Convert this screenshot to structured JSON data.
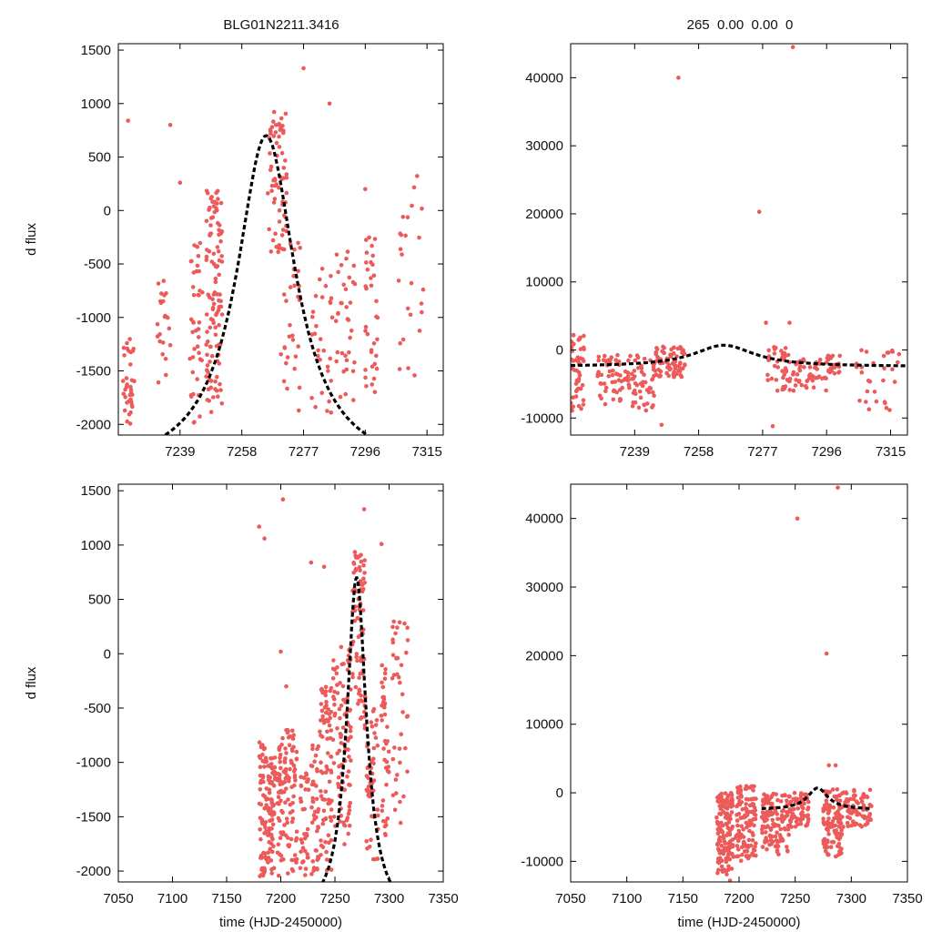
{
  "figure": {
    "title_left": "BLG01N2211.3416",
    "title_right": "265  0.00  0.00  0",
    "colors": {
      "points": "#ec5a5a",
      "model": "#000000"
    }
  },
  "chart_data": [
    {
      "type": "scatter",
      "id": "top-left",
      "ylabel": "d flux",
      "xlabel": "",
      "xlim": [
        7220,
        7320
      ],
      "ylim": [
        -2100,
        1560
      ],
      "xticks": [
        7239,
        7258,
        7277,
        7296,
        7315
      ],
      "yticks": [
        1500,
        1000,
        500,
        0,
        -500,
        -1000,
        -1500,
        -2000
      ],
      "series": [
        {
          "name": "observations",
          "clusters": [
            [
              7221,
              7225,
              -2000,
              -1200,
              35
            ],
            [
              7232,
              7236,
              -2000,
              -600,
              22
            ],
            [
              7242,
              7246,
              -2000,
              -300,
              40
            ],
            [
              7247,
              7252,
              -1900,
              200,
              110
            ],
            [
              7266,
              7272,
              -400,
              950,
              70
            ],
            [
              7270,
              7276,
              -1900,
              -300,
              30
            ],
            [
              7279,
              7286,
              -2000,
              -500,
              30
            ],
            [
              7287,
              7293,
              -1800,
              -300,
              35
            ],
            [
              7296,
              7300,
              -1700,
              -100,
              35
            ],
            [
              7305,
              7314,
              -1600,
              400,
              25
            ]
          ],
          "outliers": [
            [
              7223,
              840
            ],
            [
              7236,
              800
            ],
            [
              7239,
              260
            ],
            [
              7277,
              1330
            ],
            [
              7285,
              1000
            ],
            [
              7296,
              200
            ]
          ]
        },
        {
          "name": "model",
          "t0": 7265.5,
          "peak": 700,
          "base": -2450,
          "width": 11
        }
      ]
    },
    {
      "type": "scatter",
      "id": "top-right",
      "ylabel": "",
      "xlabel": "",
      "xlim": [
        7220,
        7320
      ],
      "ylim": [
        -12500,
        45000
      ],
      "xticks": [
        7239,
        7258,
        7277,
        7296,
        7315
      ],
      "yticks": [
        40000,
        30000,
        20000,
        10000,
        0,
        -10000
      ],
      "series": [
        {
          "name": "observations",
          "clusters": [
            [
              7220,
              7224,
              -9500,
              2500,
              50
            ],
            [
              7228,
              7238,
              -8000,
              -500,
              60
            ],
            [
              7238,
              7245,
              -9000,
              -500,
              50
            ],
            [
              7245,
              7254,
              -4000,
              500,
              80
            ],
            [
              7278,
              7285,
              -6000,
              1000,
              40
            ],
            [
              7285,
              7296,
              -6000,
              -1000,
              50
            ],
            [
              7296,
              7300,
              -3500,
              -500,
              25
            ],
            [
              7304,
              7318,
              -9000,
              0,
              30
            ]
          ],
          "outliers": [
            [
              7252,
              40000
            ],
            [
              7276,
              20300
            ],
            [
              7286,
              44500
            ],
            [
              7278,
              4000
            ],
            [
              7285,
              4000
            ],
            [
              7247,
              -11000
            ],
            [
              7280,
              -11200
            ]
          ]
        },
        {
          "name": "model",
          "t0": 7265.5,
          "peak": 700,
          "base": -2450,
          "width": 11
        }
      ]
    },
    {
      "type": "scatter",
      "id": "bottom-left",
      "ylabel": "d flux",
      "xlabel": "time (HJD-2450000)",
      "xlim": [
        7050,
        7350
      ],
      "ylim": [
        -2100,
        1560
      ],
      "xticks": [
        7050,
        7100,
        7150,
        7200,
        7250,
        7300,
        7350
      ],
      "yticks": [
        1500,
        1000,
        500,
        0,
        -500,
        -1000,
        -1500,
        -2000
      ],
      "series": [
        {
          "name": "observations",
          "clusters": [
            [
              7180,
              7187,
              -2050,
              -800,
              60
            ],
            [
              7188,
              7195,
              -2050,
              -900,
              70
            ],
            [
              7197,
              7215,
              -2050,
              -700,
              120
            ],
            [
              7218,
              7226,
              -2050,
              -1100,
              35
            ],
            [
              7228,
              7235,
              -2050,
              -800,
              40
            ],
            [
              7236,
              7247,
              -2000,
              -300,
              80
            ],
            [
              7248,
              7265,
              -1800,
              100,
              100
            ],
            [
              7266,
              7278,
              -700,
              950,
              80
            ],
            [
              7279,
              7290,
              -1900,
              -500,
              50
            ],
            [
              7292,
              7300,
              -1700,
              -100,
              40
            ],
            [
              7303,
              7318,
              -1600,
              400,
              40
            ]
          ],
          "outliers": [
            [
              7180,
              1170
            ],
            [
              7185,
              1060
            ],
            [
              7202,
              1420
            ],
            [
              7228,
              840
            ],
            [
              7240,
              800
            ],
            [
              7277,
              1330
            ],
            [
              7293,
              1010
            ],
            [
              7200,
              20
            ],
            [
              7205,
              -300
            ]
          ]
        },
        {
          "name": "model",
          "t0": 7270,
          "peak": 700,
          "base": -2450,
          "width": 11,
          "tmin": 7220,
          "tmax": 7318
        }
      ]
    },
    {
      "type": "scatter",
      "id": "bottom-right",
      "ylabel": "",
      "xlabel": "time (HJD-2450000)",
      "xlim": [
        7050,
        7350
      ],
      "ylim": [
        -13000,
        45000
      ],
      "xticks": [
        7050,
        7100,
        7150,
        7200,
        7250,
        7300,
        7350
      ],
      "yticks": [
        40000,
        30000,
        20000,
        10000,
        0,
        -10000
      ],
      "series": [
        {
          "name": "observations",
          "clusters": [
            [
              7180,
              7195,
              -12000,
              0,
              150
            ],
            [
              7197,
              7215,
              -10000,
              1000,
              120
            ],
            [
              7220,
              7245,
              -9000,
              0,
              120
            ],
            [
              7245,
              7262,
              -5000,
              0,
              80
            ],
            [
              7275,
              7292,
              -9500,
              500,
              110
            ],
            [
              7292,
              7318,
              -5000,
              500,
              70
            ]
          ],
          "outliers": [
            [
              7252,
              40000
            ],
            [
              7278,
              20300
            ],
            [
              7288,
              44500
            ],
            [
              7286,
              4000
            ],
            [
              7280,
              4000
            ],
            [
              7192,
              -12800
            ]
          ]
        },
        {
          "name": "model",
          "t0": 7270,
          "peak": 700,
          "base": -2450,
          "width": 11,
          "tmin": 7220,
          "tmax": 7318
        }
      ]
    }
  ]
}
